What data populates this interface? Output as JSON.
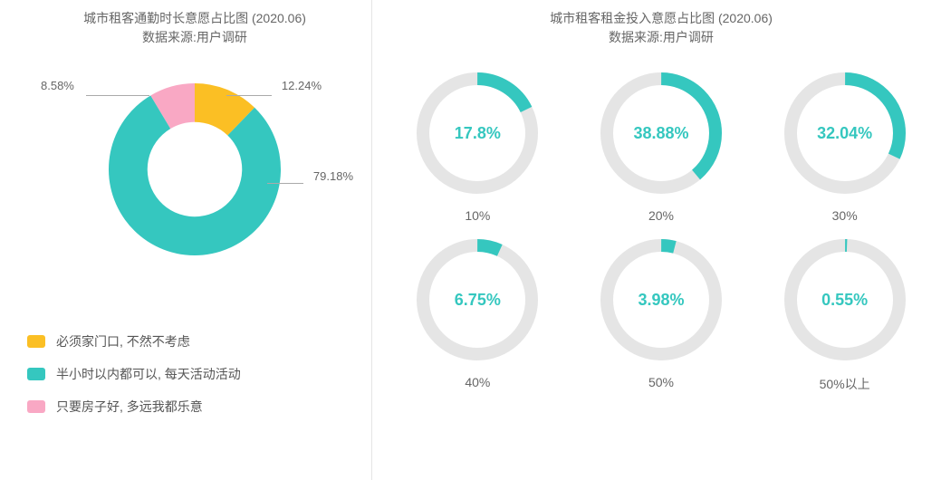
{
  "colors": {
    "teal": "#35c7bf",
    "yellow": "#fbbf24",
    "pink": "#f9a8c4",
    "track": "#e5e5e5",
    "labelText": "#666666"
  },
  "leftChart": {
    "title_line1": "城市租客通勤时长意愿占比图 (2020.06)",
    "title_line2": "数据来源:用户调研",
    "type": "donut",
    "innerRadiusPct": 55,
    "slices": [
      {
        "label": "必须家门口, 不然不考虑",
        "value": 12.24,
        "color": "#fbbf24",
        "displayPct": "12.24%"
      },
      {
        "label": "半小时以内都可以, 每天活动活动",
        "value": 79.18,
        "color": "#35c7bf",
        "displayPct": "79.18%"
      },
      {
        "label": "只要房子好, 多远我都乐意",
        "value": 8.58,
        "color": "#f9a8c4",
        "displayPct": "8.58%"
      }
    ]
  },
  "rightChart": {
    "title_line1": "城市租客租金投入意愿占比图 (2020.06)",
    "title_line2": "数据来源:用户调研",
    "type": "radial-gauges",
    "ringThicknessPx": 14,
    "trackColor": "#e5e5e5",
    "valueColor": "#35c7bf",
    "textColor": "#35c7bf",
    "gauges": [
      {
        "value": 17.8,
        "display": "17.8%",
        "caption": "10%"
      },
      {
        "value": 38.88,
        "display": "38.88%",
        "caption": "20%"
      },
      {
        "value": 32.04,
        "display": "32.04%",
        "caption": "30%"
      },
      {
        "value": 6.75,
        "display": "6.75%",
        "caption": "40%"
      },
      {
        "value": 3.98,
        "display": "3.98%",
        "caption": "50%"
      },
      {
        "value": 0.55,
        "display": "0.55%",
        "caption": "50%以上"
      }
    ]
  }
}
